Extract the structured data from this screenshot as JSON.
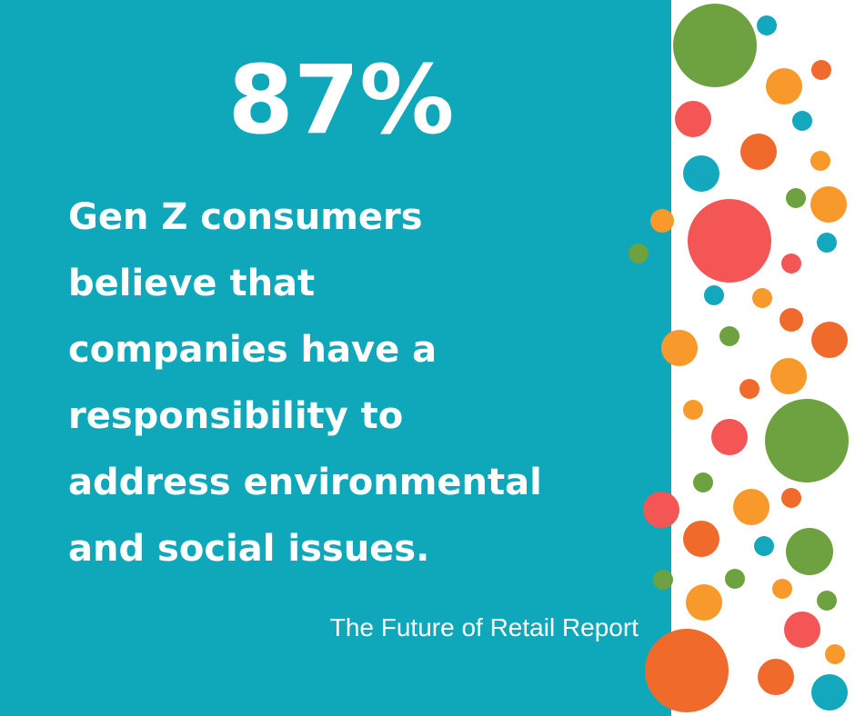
{
  "headline": "87%",
  "body_lines": [
    "Gen Z consumers",
    "believe that",
    "companies have a",
    "responsibility to",
    "address environmental",
    "and social issues."
  ],
  "source": "The Future of Retail Report"
}
